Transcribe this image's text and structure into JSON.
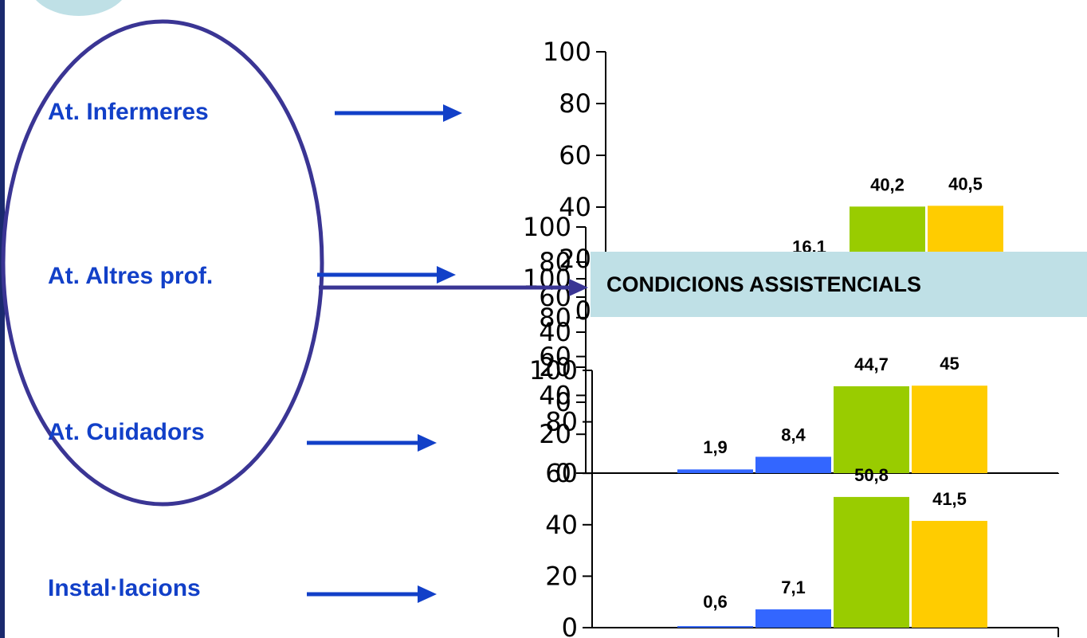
{
  "labels": {
    "infermeres": "At. Infermeres",
    "altres": "At. Altres prof.",
    "cuidadors": "At. Cuidadors",
    "instal": "Instal·lacions"
  },
  "banner": {
    "title": "CONDICIONS ASSISTENCIALS"
  },
  "colors": {
    "accent_blue": "#1240c8",
    "ellipse": "#3a3594",
    "banner_bg": "#bfe0e6",
    "series": [
      "#3366ff",
      "#99cc00",
      "#ffcc00"
    ]
  },
  "chart_data": [
    {
      "type": "bar",
      "name": "At. Infermeres",
      "categories": [
        "",
        "",
        "",
        ""
      ],
      "values": [
        null,
        16.1,
        40.2,
        40.5
      ],
      "value_labels": [
        "",
        "16,1",
        "40,2",
        "40,5"
      ],
      "ylim": [
        0,
        100
      ],
      "yticks": [
        "0",
        "20",
        "40",
        "60",
        "80",
        "100"
      ]
    },
    {
      "type": "bar",
      "name": "At. Altres prof.",
      "categories": [
        "",
        "",
        "",
        ""
      ],
      "values": [
        null,
        null,
        null,
        null
      ],
      "value_labels": [
        "",
        "",
        "",
        ""
      ],
      "ylim": [
        0,
        100
      ],
      "yticks": [
        "0",
        "20",
        "40",
        "60",
        "80",
        "100"
      ]
    },
    {
      "type": "bar",
      "name": "At. Cuidadors",
      "categories": [
        "",
        "",
        "",
        ""
      ],
      "values": [
        1.9,
        8.4,
        44.7,
        45
      ],
      "value_labels": [
        "1,9",
        "8,4",
        "44,7",
        "45"
      ],
      "ylim": [
        0,
        100
      ],
      "yticks": [
        "0",
        "20",
        "40",
        "60",
        "80",
        "100"
      ]
    },
    {
      "type": "bar",
      "name": "Instal·lacions",
      "categories": [
        "",
        "",
        "",
        ""
      ],
      "values": [
        0.6,
        7.1,
        50.8,
        41.5
      ],
      "value_labels": [
        "0,6",
        "7,1",
        "50,8",
        "41,5"
      ],
      "ylim": [
        0,
        100
      ],
      "yticks": [
        "0",
        "20",
        "40",
        "60",
        "80",
        "100"
      ]
    }
  ]
}
